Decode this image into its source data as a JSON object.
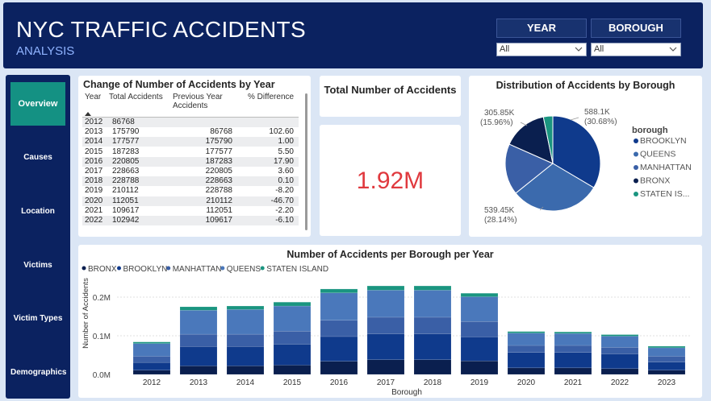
{
  "header": {
    "title": "NYC TRAFFIC ACCIDENTS",
    "subtitle": "ANALYSIS",
    "filters": [
      {
        "label": "YEAR",
        "value": "All"
      },
      {
        "label": "BOROUGH",
        "value": "All"
      }
    ]
  },
  "nav": [
    "Overview",
    "Causes",
    "Location",
    "Victims",
    "Victim Types",
    "Demographics"
  ],
  "table_card": {
    "title": "Change of Number of Accidents by Year",
    "columns": [
      "Year",
      "Total Accidents",
      "Previous Year Accidents",
      "% Difference"
    ],
    "rows": [
      [
        "2012",
        "86768",
        "",
        ""
      ],
      [
        "2013",
        "175790",
        "86768",
        "102.60"
      ],
      [
        "2014",
        "177577",
        "175790",
        "1.00"
      ],
      [
        "2015",
        "187283",
        "177577",
        "5.50"
      ],
      [
        "2016",
        "220805",
        "187283",
        "17.90"
      ],
      [
        "2017",
        "228663",
        "220805",
        "3.60"
      ],
      [
        "2018",
        "228788",
        "228663",
        "0.10"
      ],
      [
        "2019",
        "210112",
        "228788",
        "-8.20"
      ],
      [
        "2020",
        "112051",
        "210112",
        "-46.70"
      ],
      [
        "2021",
        "109617",
        "112051",
        "-2.20"
      ],
      [
        "2022",
        "102942",
        "109617",
        "-6.10"
      ]
    ]
  },
  "kpi": {
    "title": "Total Number of Accidents",
    "value": "1.92M"
  },
  "pie_card": {
    "title": "Distribution of Accidents by Borough",
    "legend_title": "borough",
    "labels": [
      {
        "value": "588.1K",
        "pct": "(30.68%)"
      },
      {
        "value": "539.45K",
        "pct": "(28.14%)"
      },
      {
        "value": "305.85K",
        "pct": "(15.96%)"
      }
    ]
  },
  "bar_card": {
    "title": "Number of Accidents per Borough per Year",
    "ylabel": "Number of Accidents",
    "xlabel": "Borough",
    "yticks": [
      "0.0M",
      "0.1M",
      "0.2M"
    ]
  },
  "chart_data": [
    {
      "type": "pie",
      "title": "Distribution of Accidents by Borough",
      "legend": "right",
      "slices": [
        {
          "name": "BROOKLYN",
          "value": 588100,
          "pct": 30.68,
          "color": "#0f3a8c"
        },
        {
          "name": "QUEENS",
          "value": 539450,
          "pct": 28.14,
          "color": "#3b6aad"
        },
        {
          "name": "MANHATTAN",
          "value": 305850,
          "pct": 15.96,
          "color": "#3a5fa6"
        },
        {
          "name": "BRONX",
          "value": 266000,
          "pct": 13.88,
          "color": "#0a1f4f"
        },
        {
          "name": "STATEN IS...",
          "value": 56000,
          "pct": 2.92,
          "color": "#1a9580"
        }
      ]
    },
    {
      "type": "bar",
      "stacked": true,
      "title": "Number of Accidents per Borough per Year",
      "xlabel": "Borough",
      "ylabel": "Number of Accidents",
      "ylim": [
        0,
        0.24
      ],
      "legend": "top-left",
      "categories": [
        "2012",
        "2013",
        "2014",
        "2015",
        "2016",
        "2017",
        "2018",
        "2019",
        "2020",
        "2021",
        "2022",
        "2023"
      ],
      "series": [
        {
          "name": "BRONX",
          "color": "#0a1f4f",
          "values": [
            0.011,
            0.022,
            0.022,
            0.024,
            0.034,
            0.038,
            0.038,
            0.035,
            0.017,
            0.017,
            0.015,
            0.011
          ]
        },
        {
          "name": "BROOKLYN",
          "color": "#0f3a8c",
          "values": [
            0.02,
            0.05,
            0.05,
            0.054,
            0.064,
            0.067,
            0.067,
            0.062,
            0.04,
            0.04,
            0.038,
            0.021
          ]
        },
        {
          "name": "MANHATTAN",
          "color": "#3a5fa6",
          "values": [
            0.016,
            0.032,
            0.032,
            0.034,
            0.042,
            0.043,
            0.043,
            0.04,
            0.018,
            0.018,
            0.017,
            0.015
          ]
        },
        {
          "name": "QUEENS",
          "color": "#4a78bb",
          "values": [
            0.033,
            0.062,
            0.064,
            0.065,
            0.071,
            0.07,
            0.07,
            0.064,
            0.032,
            0.031,
            0.029,
            0.022
          ]
        },
        {
          "name": "STATEN ISLAND",
          "color": "#1a9580",
          "values": [
            0.004,
            0.009,
            0.009,
            0.01,
            0.01,
            0.011,
            0.011,
            0.009,
            0.004,
            0.004,
            0.004,
            0.004
          ]
        }
      ]
    }
  ]
}
